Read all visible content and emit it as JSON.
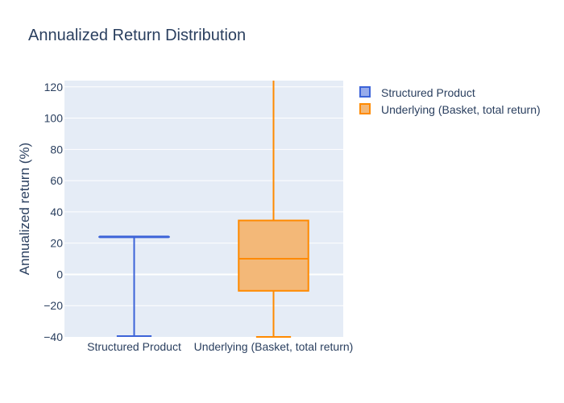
{
  "chart_data": {
    "type": "box",
    "title": "Annualized Return Distribution",
    "ylabel": "Annualized return (%)",
    "xlabel": "",
    "ylim": [
      -40,
      124
    ],
    "yticks": [
      -40,
      -20,
      0,
      20,
      40,
      60,
      80,
      100,
      120
    ],
    "categories": [
      "Structured Product",
      "Underlying (Basket, total return)"
    ],
    "grid": true,
    "legend_position": "top-right",
    "series": [
      {
        "name": "Structured Product",
        "color": "#3c63d8",
        "fill": "#97abeb",
        "lowerfence": -39.5,
        "q1": 24.0,
        "median": 24.0,
        "q3": 24.0,
        "upperfence": 24.0
      },
      {
        "name": "Underlying (Basket, total return)",
        "color": "#ff8a00",
        "fill": "#f3b878",
        "lowerfence": -40,
        "q1": -10.5,
        "median": 10.0,
        "q3": 34.5,
        "upperfence": 124
      }
    ]
  }
}
